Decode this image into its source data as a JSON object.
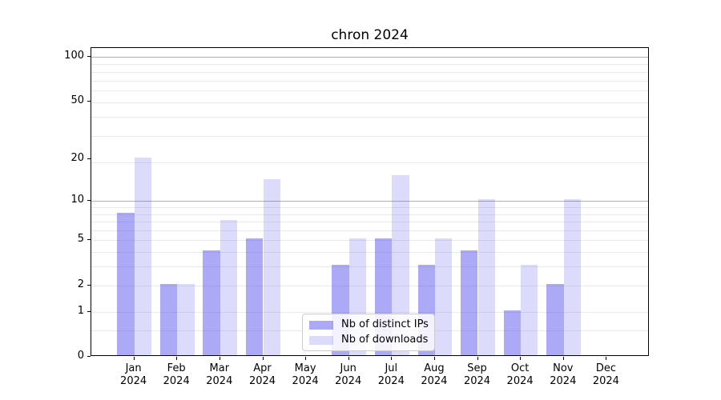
{
  "title": "chron 2024",
  "chart_data": {
    "type": "bar",
    "title": "chron 2024",
    "categories": [
      "Jan\n2024",
      "Feb\n2024",
      "Mar\n2024",
      "Apr\n2024",
      "May\n2024",
      "Jun\n2024",
      "Jul\n2024",
      "Aug\n2024",
      "Sep\n2024",
      "Oct\n2024",
      "Nov\n2024",
      "Dec\n2024"
    ],
    "series": [
      {
        "name": "Nb of distinct IPs",
        "values": [
          8,
          2,
          4,
          5,
          0,
          3,
          5,
          3,
          4,
          1,
          2,
          0
        ],
        "color": "rgba(70,64,238,0.45)"
      },
      {
        "name": "Nb of downloads",
        "values": [
          20,
          2,
          7,
          14,
          0,
          5,
          15,
          5,
          10,
          3,
          10,
          0
        ],
        "color": "rgba(70,64,238,0.19)"
      }
    ],
    "xlabel": "",
    "ylabel": "",
    "yscale": "log1p",
    "yticks": [
      0,
      1,
      2,
      5,
      10,
      20,
      50,
      100
    ],
    "ylim": [
      0,
      116
    ],
    "grid": true,
    "grid_major_values": [
      10,
      100
    ],
    "grid_minor_values": [
      0.5,
      1,
      2,
      3,
      4,
      5,
      6,
      7,
      8,
      9,
      19,
      29,
      39,
      49,
      59,
      69,
      79,
      89
    ],
    "legend_position": "lower center",
    "colors": {
      "bar_dark": "rgba(70,64,238,0.45)",
      "bar_light": "rgba(70,64,238,0.19)",
      "grid_major": "#b0b0b0",
      "grid_minor": "#e9e9ef",
      "spine": "#000000"
    }
  }
}
